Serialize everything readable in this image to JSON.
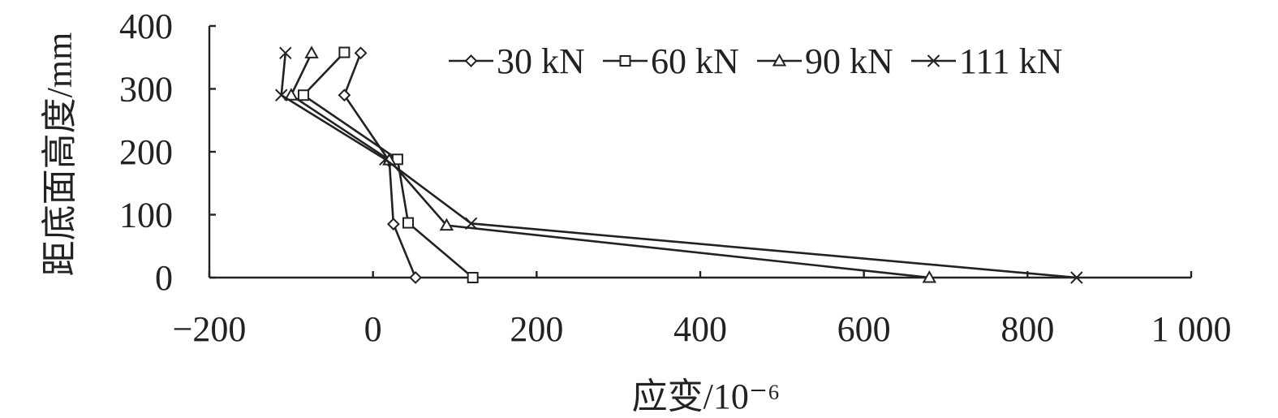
{
  "chart_data": {
    "type": "line",
    "xlabel": "应变/10⁻⁶",
    "ylabel": "距底面高度/mm",
    "xlim": [
      -200,
      1000
    ],
    "ylim": [
      0,
      400
    ],
    "xticks": [
      -200,
      0,
      200,
      400,
      600,
      800,
      1000
    ],
    "xtick_labels": [
      "−200",
      "0",
      "200",
      "400",
      "600",
      "800",
      "1 000"
    ],
    "yticks": [
      0,
      100,
      200,
      300,
      400
    ],
    "ytick_labels": [
      "0",
      "100",
      "200",
      "300",
      "400"
    ],
    "legend_position": "top-right",
    "grid": false,
    "series": [
      {
        "name": "30 kN",
        "marker": "diamond",
        "points": [
          [
            52,
            0
          ],
          [
            25,
            85
          ],
          [
            20,
            185
          ],
          [
            -35,
            290
          ],
          [
            -15,
            357
          ]
        ]
      },
      {
        "name": "60 kN",
        "marker": "square",
        "points": [
          [
            122,
            0
          ],
          [
            43,
            87
          ],
          [
            30,
            188
          ],
          [
            -85,
            290
          ],
          [
            -35,
            358
          ]
        ]
      },
      {
        "name": "90 kN",
        "marker": "triangle",
        "points": [
          [
            680,
            0
          ],
          [
            90,
            83
          ],
          [
            20,
            187
          ],
          [
            -100,
            290
          ],
          [
            -75,
            357
          ]
        ]
      },
      {
        "name": "111 kN",
        "marker": "x",
        "points": [
          [
            860,
            0
          ],
          [
            120,
            86
          ],
          [
            15,
            188
          ],
          [
            -112,
            290
          ],
          [
            -107,
            357
          ]
        ]
      }
    ]
  }
}
